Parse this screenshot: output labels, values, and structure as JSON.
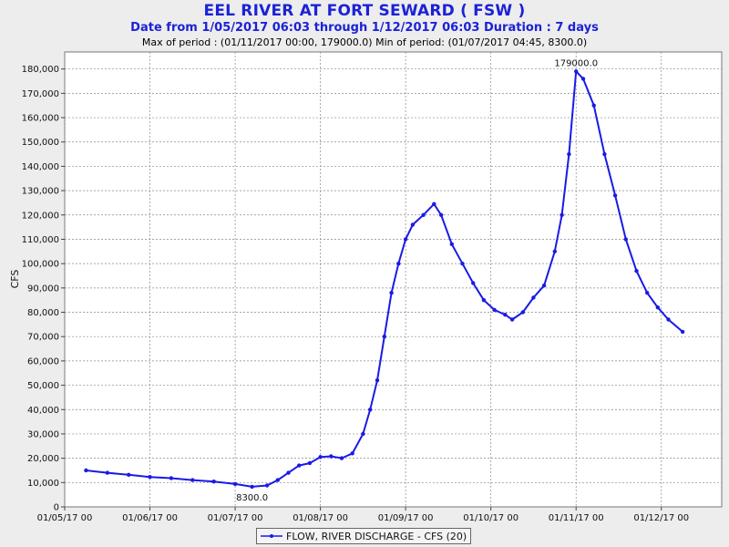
{
  "header": {
    "title": "EEL RIVER AT FORT SEWARD ( FSW )",
    "subtitle": "Date from 1/05/2017 06:03 through 1/12/2017 06:03 Duration : 7 days",
    "extrema": "Max of period : (01/11/2017 00:00, 179000.0)  Min of period: (01/07/2017 04:45,  8300.0)"
  },
  "colors": {
    "series": "#1a1ae6",
    "plot_bg": "#ffffff",
    "grid": "#888888"
  },
  "chart_data": {
    "type": "line",
    "ylabel": "CFS",
    "ylim": [
      0,
      187000
    ],
    "xlim": [
      "01/05/17 00",
      "01/12/17 17"
    ],
    "y_ticks": [
      0,
      10000,
      20000,
      30000,
      40000,
      50000,
      60000,
      70000,
      80000,
      90000,
      100000,
      110000,
      120000,
      130000,
      140000,
      150000,
      160000,
      170000,
      180000
    ],
    "y_tick_labels": [
      "0",
      "10,000",
      "20,000",
      "30,000",
      "40,000",
      "50,000",
      "60,000",
      "70,000",
      "80,000",
      "90,000",
      "100,000",
      "110,000",
      "120,000",
      "130,000",
      "140,000",
      "150,000",
      "160,000",
      "170,000",
      "180,000"
    ],
    "x_ticks": [
      "01/05/17 00",
      "01/06/17 00",
      "01/07/17 00",
      "01/08/17 00",
      "01/09/17 00",
      "01/10/17 00",
      "01/11/17 00",
      "01/12/17 00"
    ],
    "grid": true,
    "legend_position": "bottom-center",
    "series": [
      {
        "name": "FLOW, RIVER DISCHARGE - CFS (20)",
        "points": [
          [
            "01/05/17 06:00",
            15000
          ],
          [
            "01/05/17 12:00",
            14000
          ],
          [
            "01/05/17 18:00",
            13200
          ],
          [
            "01/06/17 00:00",
            12300
          ],
          [
            "01/06/17 06:00",
            11800
          ],
          [
            "01/06/17 12:00",
            11000
          ],
          [
            "01/06/17 18:00",
            10400
          ],
          [
            "01/07/17 00:00",
            9400
          ],
          [
            "01/07/17 04:45",
            8300
          ],
          [
            "01/07/17 09:00",
            8800
          ],
          [
            "01/07/17 12:00",
            11000
          ],
          [
            "01/07/17 15:00",
            14000
          ],
          [
            "01/07/17 18:00",
            17000
          ],
          [
            "01/07/17 21:00",
            18000
          ],
          [
            "01/08/17 00:00",
            20500
          ],
          [
            "01/08/17 03:00",
            20800
          ],
          [
            "01/08/17 06:00",
            20000
          ],
          [
            "01/08/17 09:00",
            22000
          ],
          [
            "01/08/17 12:00",
            30000
          ],
          [
            "01/08/17 14:00",
            40000
          ],
          [
            "01/08/17 16:00",
            52000
          ],
          [
            "01/08/17 18:00",
            70000
          ],
          [
            "01/08/17 20:00",
            88000
          ],
          [
            "01/08/17 22:00",
            100000
          ],
          [
            "01/09/17 00:00",
            110000
          ],
          [
            "01/09/17 02:00",
            116000
          ],
          [
            "01/09/17 05:00",
            120000
          ],
          [
            "01/09/17 08:00",
            124500
          ],
          [
            "01/09/17 10:00",
            120000
          ],
          [
            "01/09/17 13:00",
            108000
          ],
          [
            "01/09/17 16:00",
            100000
          ],
          [
            "01/09/17 19:00",
            92000
          ],
          [
            "01/09/17 22:00",
            85000
          ],
          [
            "01/10/17 01:00",
            81000
          ],
          [
            "01/10/17 04:00",
            79000
          ],
          [
            "01/10/17 06:00",
            77000
          ],
          [
            "01/10/17 09:00",
            80000
          ],
          [
            "01/10/17 12:00",
            86000
          ],
          [
            "01/10/17 15:00",
            91000
          ],
          [
            "01/10/17 18:00",
            105000
          ],
          [
            "01/10/17 20:00",
            120000
          ],
          [
            "01/10/17 22:00",
            145000
          ],
          [
            "01/11/17 00:00",
            179000
          ],
          [
            "01/11/17 02:00",
            176000
          ],
          [
            "01/11/17 05:00",
            165000
          ],
          [
            "01/11/17 08:00",
            145000
          ],
          [
            "01/11/17 11:00",
            128000
          ],
          [
            "01/11/17 14:00",
            110000
          ],
          [
            "01/11/17 17:00",
            97000
          ],
          [
            "01/11/17 20:00",
            88000
          ],
          [
            "01/11/17 23:00",
            82000
          ],
          [
            "01/12/17 02:00",
            77000
          ],
          [
            "01/12/17 06:00",
            72000
          ]
        ]
      }
    ],
    "annotations": [
      {
        "text": "179000.0",
        "x": "01/11/17 00:00",
        "y": 179000,
        "position": "above"
      },
      {
        "text": "8300.0",
        "x": "01/07/17 04:45",
        "y": 8300,
        "position": "below"
      }
    ]
  }
}
